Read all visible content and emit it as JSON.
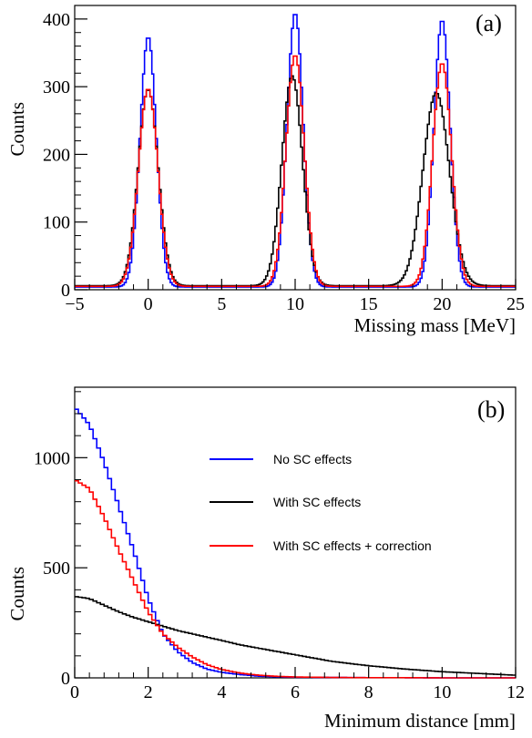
{
  "chart_data": [
    {
      "type": "line",
      "panel_label": "(a)",
      "xlabel": "Missing mass [MeV]",
      "ylabel": "Counts",
      "xlim": [
        -5,
        25
      ],
      "ylim": [
        0,
        420
      ],
      "x_ticks": [
        -5,
        0,
        5,
        10,
        15,
        20,
        25
      ],
      "x_tick_labels": [
        "−5",
        "0",
        "5",
        "10",
        "15",
        "20",
        "25"
      ],
      "y_ticks": [
        0,
        100,
        200,
        300,
        400
      ],
      "y_tick_labels": [
        "0",
        "100",
        "200",
        "300",
        "400"
      ],
      "grid": false,
      "legend": "none",
      "series": [
        {
          "color": "#0000ff",
          "peaks": [
            {
              "center": 0.0,
              "height": 370,
              "sigma": 0.55
            },
            {
              "center": 10.0,
              "height": 405,
              "sigma": 0.55
            },
            {
              "center": 20.0,
              "height": 395,
              "sigma": 0.55
            }
          ],
          "baseline": 4
        },
        {
          "color": "#000000",
          "peaks": [
            {
              "center": 0.0,
              "height": 290,
              "sigma": 0.68
            },
            {
              "center": 9.8,
              "height": 310,
              "sigma": 0.7
            },
            {
              "center": 19.6,
              "height": 285,
              "sigma": 0.9
            }
          ],
          "baseline": 6
        },
        {
          "color": "#ff0000",
          "peaks": [
            {
              "center": 0.0,
              "height": 292,
              "sigma": 0.66
            },
            {
              "center": 10.0,
              "height": 342,
              "sigma": 0.62
            },
            {
              "center": 20.0,
              "height": 330,
              "sigma": 0.64
            }
          ],
          "baseline": 5
        }
      ]
    },
    {
      "type": "line",
      "panel_label": "(b)",
      "xlabel": "Minimum distance [mm]",
      "ylabel": "Counts",
      "xlim": [
        0,
        12
      ],
      "ylim": [
        0,
        1320
      ],
      "x_ticks": [
        0,
        2,
        4,
        6,
        8,
        10,
        12
      ],
      "x_tick_labels": [
        "0",
        "2",
        "4",
        "6",
        "8",
        "10",
        "12"
      ],
      "y_ticks": [
        0,
        500,
        1000
      ],
      "y_tick_labels": [
        "0",
        "500",
        "1000"
      ],
      "grid": false,
      "legend": "top-right",
      "series": [
        {
          "name": "No SC effects",
          "color": "#0000ff",
          "x": [
            0,
            0.4,
            0.8,
            1.2,
            1.6,
            2.0,
            2.4,
            2.8,
            3.2,
            3.6,
            4.0,
            4.5,
            5.0,
            5.5,
            6.0,
            7.0,
            8.0,
            9.0,
            10.0,
            11.0,
            12.0
          ],
          "values": [
            1230,
            1150,
            980,
            780,
            580,
            360,
            200,
            120,
            70,
            40,
            25,
            15,
            8,
            5,
            3,
            2,
            1,
            1,
            0,
            0,
            0
          ]
        },
        {
          "name": "With SC effects",
          "color": "#000000",
          "x": [
            0,
            0.4,
            0.8,
            1.2,
            1.6,
            2.0,
            2.4,
            2.8,
            3.2,
            3.6,
            4.0,
            4.5,
            5.0,
            5.5,
            6.0,
            6.5,
            7.0,
            7.5,
            8.0,
            9.0,
            10.0,
            11.0,
            12.0
          ],
          "values": [
            370,
            360,
            330,
            300,
            275,
            255,
            235,
            215,
            200,
            185,
            170,
            150,
            135,
            120,
            105,
            90,
            75,
            65,
            55,
            40,
            28,
            20,
            12
          ]
        },
        {
          "name": "With SC effects + correction",
          "color": "#ff0000",
          "x": [
            0,
            0.4,
            0.8,
            1.2,
            1.6,
            2.0,
            2.4,
            2.8,
            3.2,
            3.6,
            4.0,
            4.5,
            5.0,
            5.5,
            6.0,
            7.0,
            8.0,
            9.0,
            10.0,
            11.0,
            12.0
          ],
          "values": [
            900,
            860,
            730,
            580,
            440,
            300,
            200,
            140,
            95,
            60,
            38,
            22,
            12,
            7,
            4,
            2,
            1,
            1,
            0,
            0,
            0
          ]
        }
      ]
    }
  ]
}
